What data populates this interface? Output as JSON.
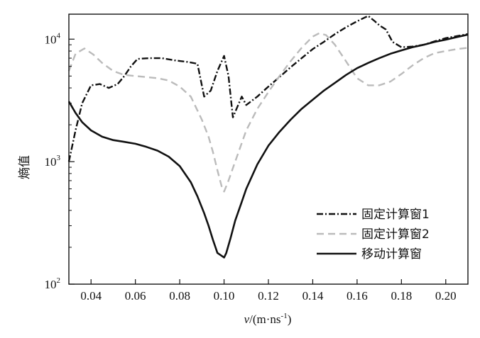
{
  "chart_data": {
    "type": "line",
    "xlabel_italic": "v",
    "xlabel_rest": "/(m·ns",
    "xlabel_sup": "-1",
    "xlabel_close": ")",
    "ylabel": "熵值",
    "x_scale": "linear",
    "y_scale": "log",
    "xlim": [
      0.03,
      0.21
    ],
    "ylim": [
      100,
      16000
    ],
    "x_ticks": [
      {
        "value": 0.04,
        "label": "0.04"
      },
      {
        "value": 0.06,
        "label": "0.06"
      },
      {
        "value": 0.08,
        "label": "0.08"
      },
      {
        "value": 0.1,
        "label": "0.10"
      },
      {
        "value": 0.12,
        "label": "0.12"
      },
      {
        "value": 0.14,
        "label": "0.14"
      },
      {
        "value": 0.16,
        "label": "0.16"
      },
      {
        "value": 0.18,
        "label": "0.18"
      },
      {
        "value": 0.2,
        "label": "0.20"
      }
    ],
    "y_ticks": [
      {
        "value": 100,
        "base": "10",
        "exp": "2"
      },
      {
        "value": 1000,
        "base": "10",
        "exp": "3"
      },
      {
        "value": 10000,
        "base": "10",
        "exp": "4"
      }
    ],
    "grid": false,
    "legend_position": "bottom-right",
    "series": [
      {
        "name": "固定计算窗1",
        "style": "dashdot",
        "color": "#111111",
        "x": [
          0.03,
          0.033,
          0.036,
          0.04,
          0.044,
          0.048,
          0.052,
          0.055,
          0.058,
          0.061,
          0.066,
          0.072,
          0.078,
          0.084,
          0.088,
          0.091,
          0.094,
          0.097,
          0.1,
          0.102,
          0.104,
          0.106,
          0.108,
          0.11,
          0.115,
          0.12,
          0.125,
          0.13,
          0.135,
          0.14,
          0.145,
          0.15,
          0.155,
          0.16,
          0.165,
          0.168,
          0.17,
          0.173,
          0.176,
          0.18,
          0.185,
          0.19,
          0.195,
          0.2,
          0.205,
          0.21
        ],
        "y": [
          1000,
          1800,
          3000,
          4200,
          4300,
          4000,
          4300,
          5000,
          6000,
          6900,
          7000,
          7000,
          6700,
          6500,
          6300,
          3400,
          3800,
          5500,
          7300,
          5000,
          2300,
          2800,
          3400,
          2900,
          3400,
          4100,
          4900,
          5900,
          7000,
          8300,
          9500,
          11000,
          12500,
          14000,
          15500,
          14000,
          13000,
          12000,
          9500,
          8600,
          8700,
          9000,
          9600,
          10200,
          10600,
          11000
        ]
      },
      {
        "name": "固定计算窗2",
        "style": "dashed",
        "color": "#bbbbbb",
        "x": [
          0.03,
          0.033,
          0.037,
          0.041,
          0.045,
          0.05,
          0.055,
          0.06,
          0.065,
          0.07,
          0.075,
          0.08,
          0.085,
          0.09,
          0.093,
          0.095,
          0.097,
          0.099,
          0.1,
          0.102,
          0.105,
          0.11,
          0.115,
          0.12,
          0.125,
          0.13,
          0.135,
          0.14,
          0.143,
          0.146,
          0.15,
          0.155,
          0.16,
          0.165,
          0.17,
          0.175,
          0.18,
          0.185,
          0.19,
          0.195,
          0.2,
          0.205,
          0.21
        ],
        "y": [
          5500,
          7600,
          8400,
          7500,
          6400,
          5500,
          5100,
          5000,
          4900,
          4800,
          4600,
          4100,
          3400,
          2200,
          1600,
          1200,
          850,
          620,
          570,
          700,
          1000,
          1800,
          2700,
          3700,
          5000,
          6600,
          8500,
          10500,
          11200,
          10800,
          9000,
          6600,
          4800,
          4200,
          4200,
          4500,
          5200,
          6100,
          7000,
          7700,
          8000,
          8300,
          8500
        ]
      },
      {
        "name": "移动计算窗",
        "style": "solid",
        "color": "#111111",
        "x": [
          0.03,
          0.033,
          0.036,
          0.04,
          0.045,
          0.05,
          0.055,
          0.06,
          0.065,
          0.07,
          0.075,
          0.08,
          0.085,
          0.088,
          0.091,
          0.093,
          0.095,
          0.097,
          0.099,
          0.1,
          0.101,
          0.103,
          0.105,
          0.108,
          0.11,
          0.115,
          0.12,
          0.125,
          0.13,
          0.135,
          0.14,
          0.145,
          0.15,
          0.155,
          0.16,
          0.165,
          0.17,
          0.175,
          0.18,
          0.185,
          0.19,
          0.195,
          0.2,
          0.205,
          0.21
        ],
        "y": [
          3100,
          2500,
          2100,
          1800,
          1600,
          1500,
          1450,
          1400,
          1320,
          1230,
          1100,
          920,
          680,
          520,
          380,
          300,
          230,
          180,
          170,
          165,
          180,
          240,
          330,
          470,
          600,
          950,
          1350,
          1750,
          2200,
          2700,
          3200,
          3800,
          4400,
          5100,
          5800,
          6400,
          7000,
          7600,
          8100,
          8600,
          9000,
          9500,
          9900,
          10400,
          10900
        ]
      }
    ]
  }
}
